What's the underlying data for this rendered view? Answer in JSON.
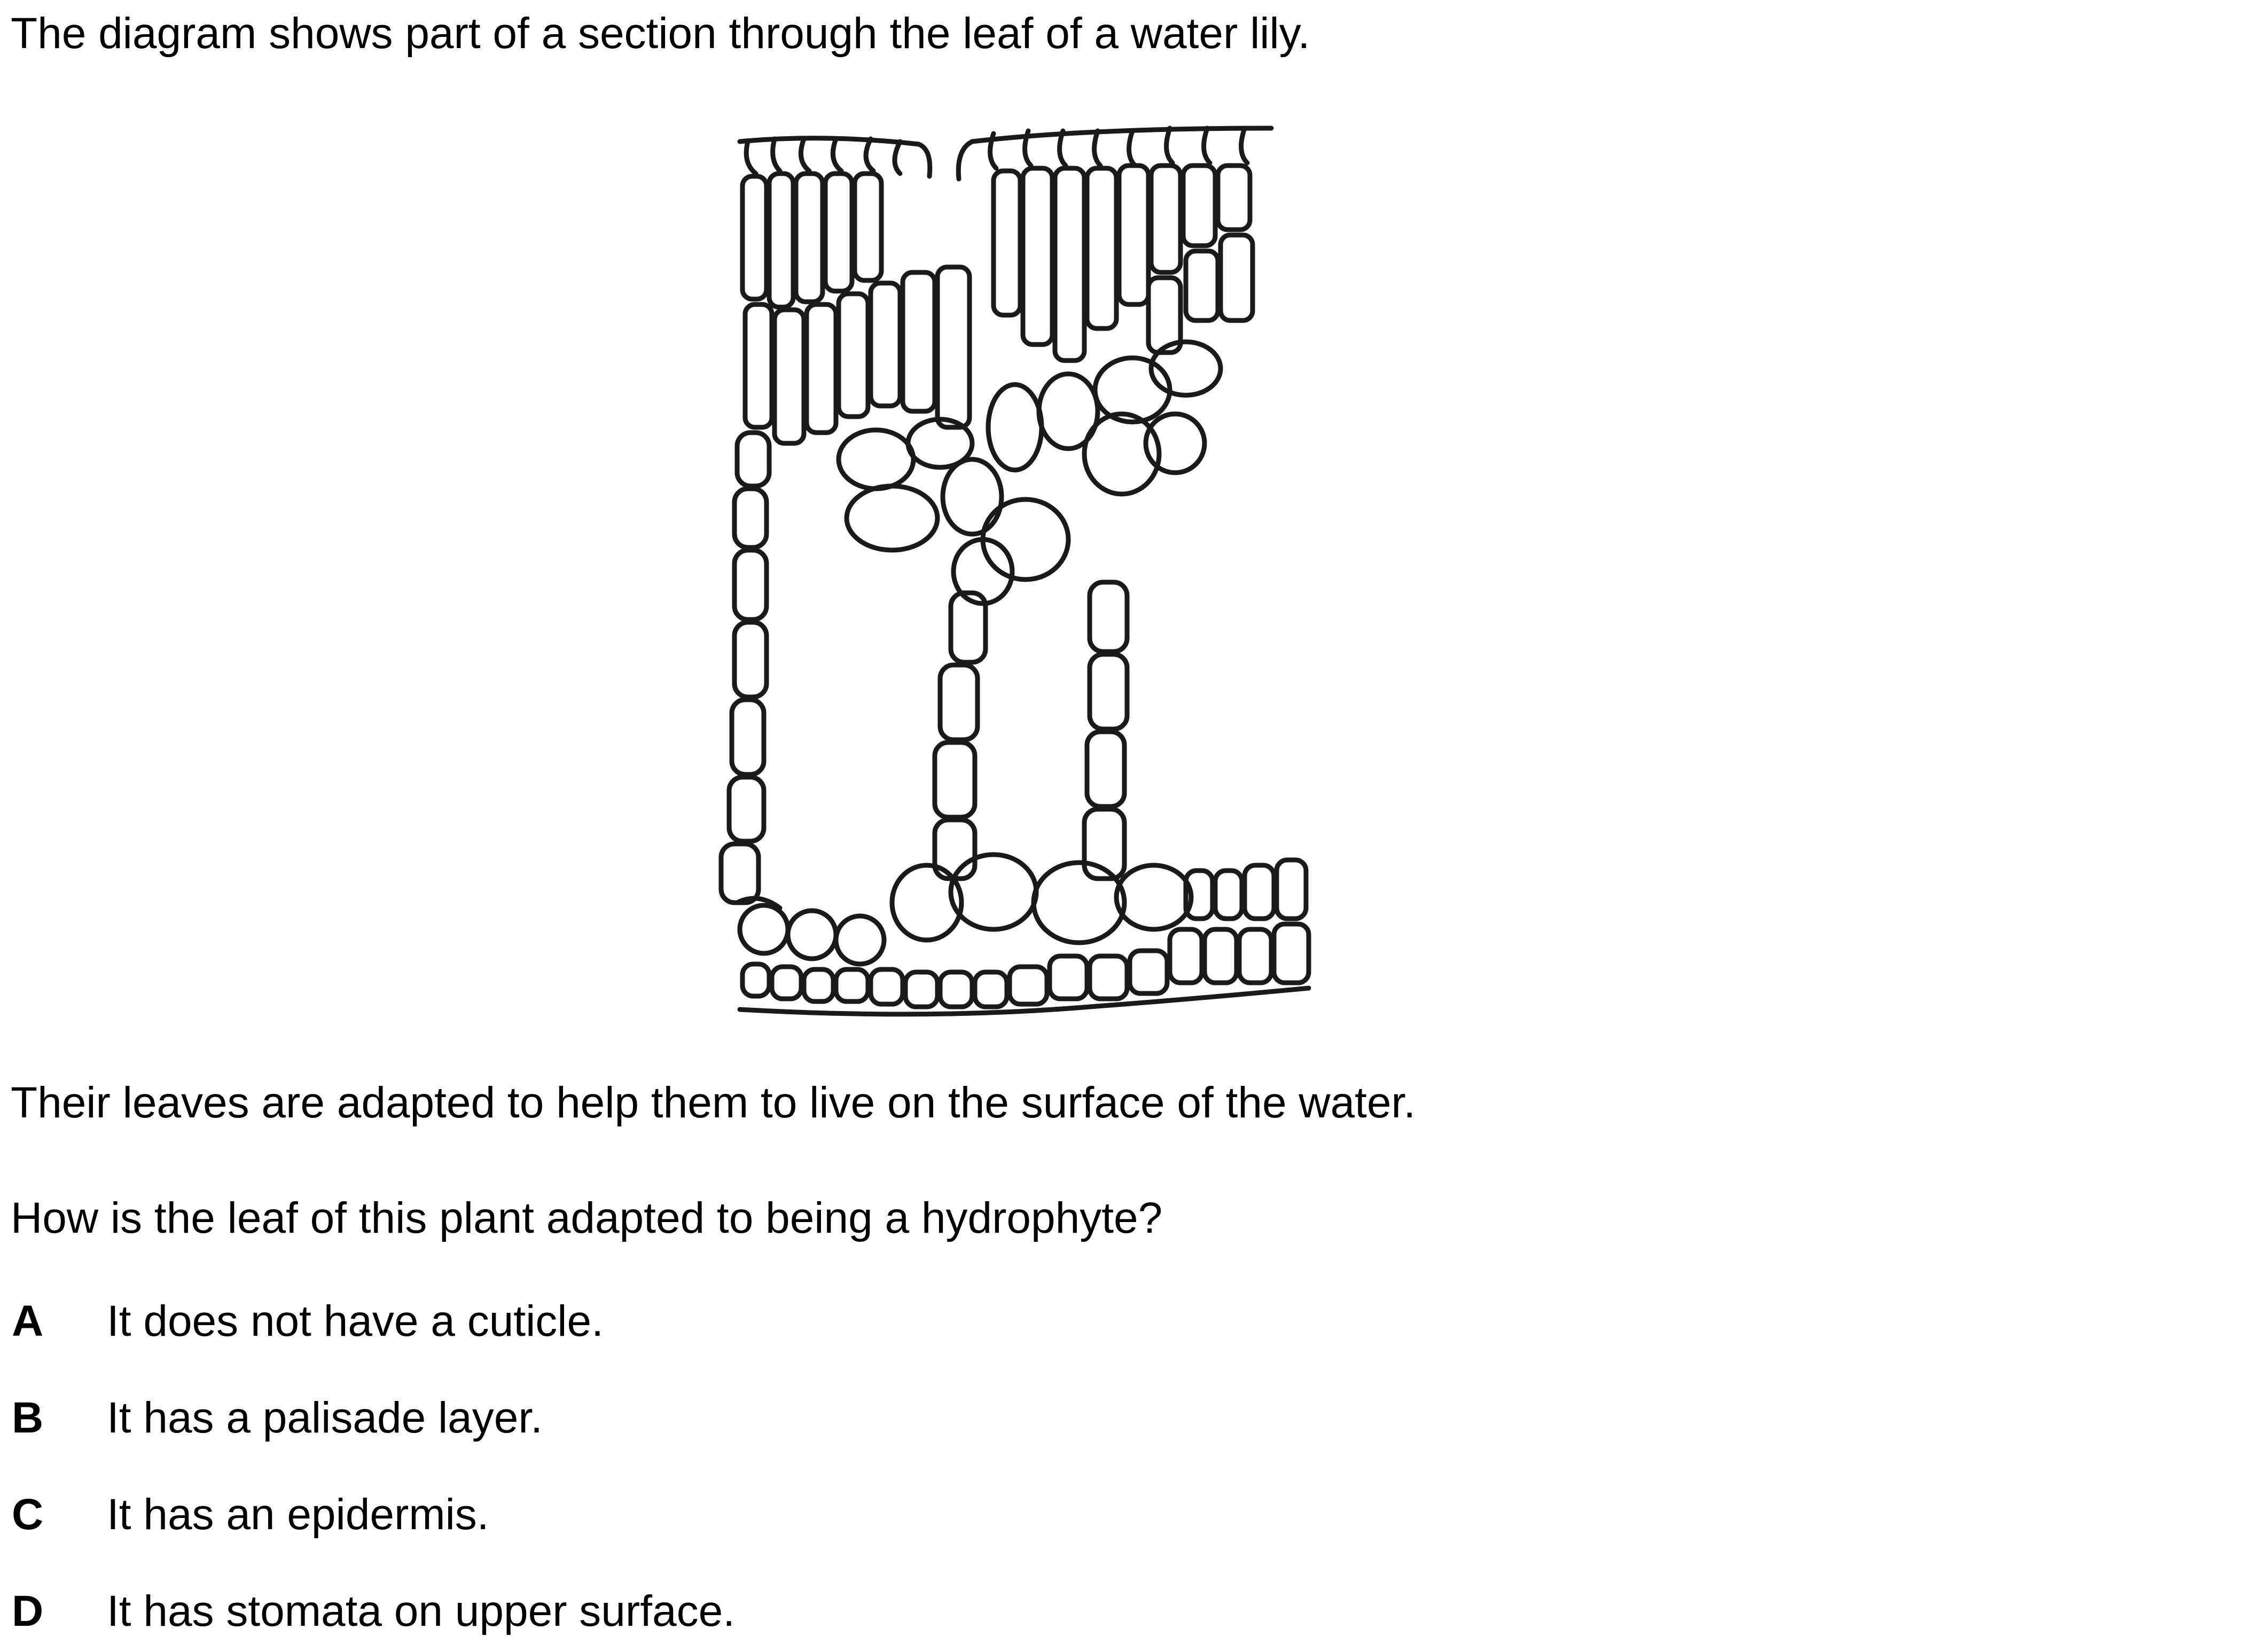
{
  "question": {
    "intro": "The diagram shows part of a section through the leaf of a water lily.",
    "statement": "Their leaves are adapted to help them to live on the surface of the water.",
    "prompt": "How is the leaf of this plant adapted to being a hydrophyte?",
    "options": [
      {
        "letter": "A",
        "text": "It does not have a cuticle."
      },
      {
        "letter": "B",
        "text": "It has a palisade layer."
      },
      {
        "letter": "C",
        "text": "It has an epidermis."
      },
      {
        "letter": "D",
        "text": "It has stomata on upper surface."
      }
    ]
  },
  "diagram": {
    "subject": "leaf-cross-section",
    "stroke_color": "#1a1a1a"
  }
}
